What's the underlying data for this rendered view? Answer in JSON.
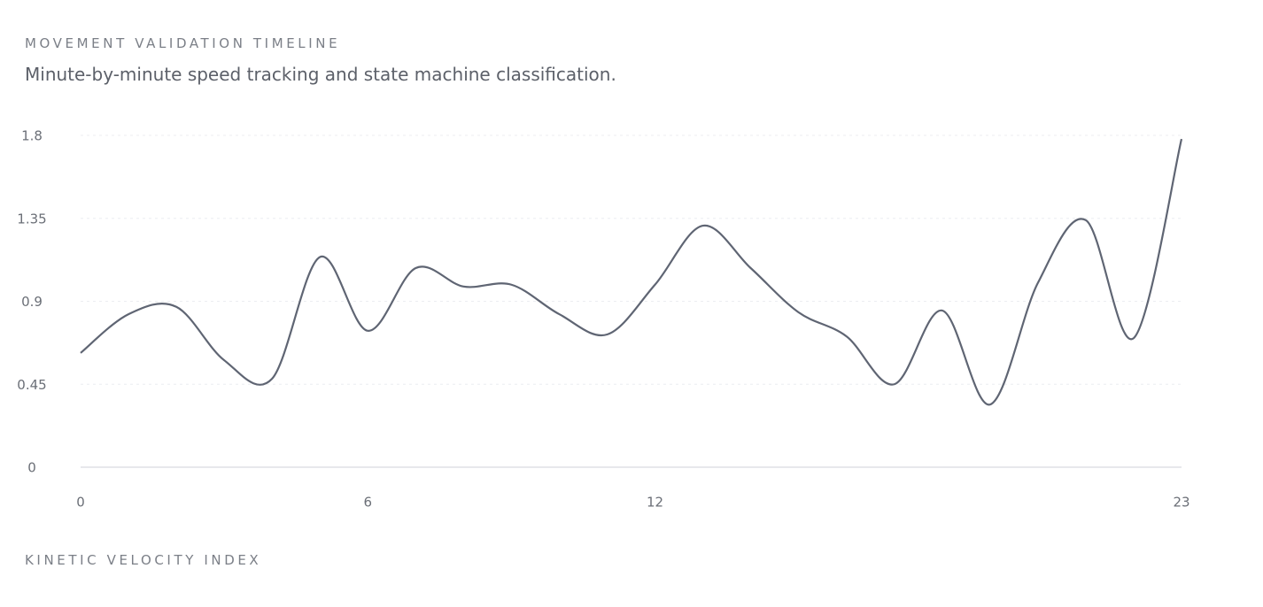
{
  "chart_data": {
    "type": "line",
    "title": "MOVEMENT VALIDATION TIMELINE",
    "subtitle": "Minute-by-minute speed tracking and state machine classification.",
    "caption": "KINETIC VELOCITY INDEX",
    "x": [
      0,
      1,
      2,
      3,
      4,
      5,
      6,
      7,
      8,
      9,
      10,
      11,
      12,
      13,
      14,
      15,
      16,
      17,
      18,
      19,
      20,
      21,
      22,
      23
    ],
    "series": [
      {
        "color": "#5f6573",
        "values": [
          0.62,
          0.83,
          0.87,
          0.58,
          0.48,
          1.14,
          0.74,
          1.08,
          0.98,
          0.99,
          0.83,
          0.72,
          0.99,
          1.31,
          1.08,
          0.84,
          0.71,
          0.45,
          0.85,
          0.34,
          1.0,
          1.34,
          0.7,
          1.78
        ]
      }
    ],
    "xlim": [
      0,
      23
    ],
    "xticks": [
      0,
      6,
      12,
      23
    ],
    "ylim": [
      0,
      1.8
    ],
    "yticks": [
      0,
      0.45,
      0.9,
      1.35,
      1.8
    ],
    "grid": true
  }
}
